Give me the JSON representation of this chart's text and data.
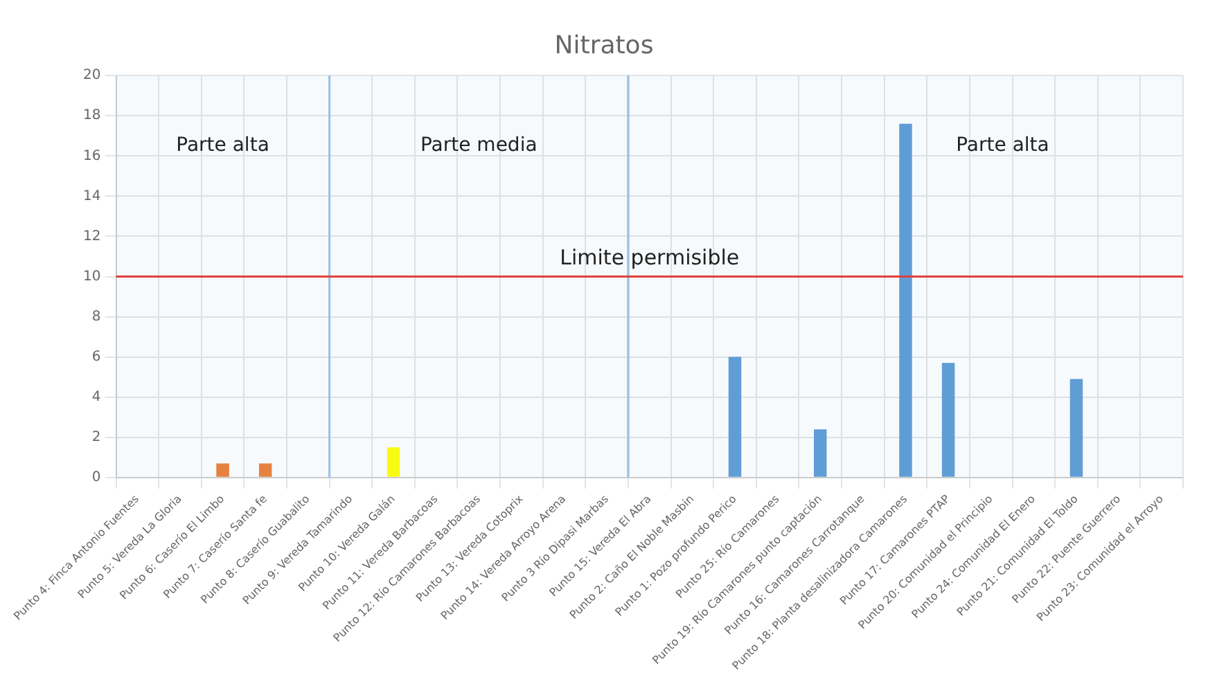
{
  "chart_data": {
    "type": "bar",
    "title": "Nitratos",
    "categories": [
      "Punto 4: Finca Antonio Fuentes",
      "Punto 5: Vereda La Gloria",
      "Punto 6: Caserío El Limbo",
      "Punto 7: Caserío Santa fe",
      "Punto 8: Caserío Guabalito",
      "Punto 9: Vereda Tamarindo",
      "Punto 10: Vereda Galán",
      "Punto 11: Vereda Barbacoas",
      "Punto 12: Río Camarones Barbacoas",
      "Punto 13: Vereda Cotoprix",
      "Punto 14: Vereda Arroyo Arena",
      "Punto 3 Río Dipasi Marbas",
      "Punto 15: Vereda El Abra",
      "Punto 2: Caño El Noble Masbin",
      "Punto 1: Pozo profundo Perico",
      "Punto 25: Río Camarones",
      "Punto 19: Río Camarones punto captación",
      "Punto 16: Camarones Carrotanque",
      "Punto 18: Planta desalinizadora Camarones",
      "Punto 17: Camarones PTAP",
      "Punto 20: Comunidad el Principio",
      "Punto 24: Comunidad El Enero",
      "Punto 21: Comunidad El Toldo",
      "Punto 22: Puente Guerrero",
      "Punto 23: Comunidad el Arroyo"
    ],
    "values": [
      null,
      null,
      0.7,
      0.7,
      null,
      null,
      1.5,
      null,
      null,
      null,
      null,
      null,
      null,
      null,
      6.0,
      null,
      2.4,
      null,
      17.6,
      5.7,
      null,
      null,
      4.9,
      null,
      null
    ],
    "colors": [
      "#5b9bd5",
      "#5b9bd5",
      "#ed7d31",
      "#ed7d31",
      "#5b9bd5",
      "#5b9bd5",
      "#ffff00",
      "#5b9bd5",
      "#5b9bd5",
      "#5b9bd5",
      "#5b9bd5",
      "#5b9bd5",
      "#5b9bd5",
      "#5b9bd5",
      "#5b9bd5",
      "#5b9bd5",
      "#5b9bd5",
      "#5b9bd5",
      "#5b9bd5",
      "#5b9bd5",
      "#5b9bd5",
      "#5b9bd5",
      "#5b9bd5",
      "#5b9bd5",
      "#5b9bd5"
    ],
    "ylim": [
      0,
      20
    ],
    "yticks": [
      0,
      2,
      4,
      6,
      8,
      10,
      12,
      14,
      16,
      18,
      20
    ],
    "grid": true,
    "ref_lines": [
      {
        "axis": "y",
        "value": 10,
        "label": "Limite permisible",
        "color": "#e0403a"
      }
    ],
    "bands": [
      {
        "axis": "x",
        "from": "Punto 4: Finca Antonio Fuentes",
        "to": "Punto 8: Caserío Guabalito",
        "label": "Parte alta",
        "color": "#9dc3e6"
      },
      {
        "axis": "x",
        "from": "Punto 9: Vereda Tamarindo",
        "to": "Punto 3 Río Dipasi Marbas",
        "label": "Parte media",
        "color": "#9dc3e6"
      },
      {
        "axis": "x",
        "from": "Punto 15: Vereda El Abra",
        "to": "Punto 23: Comunidad el Arroyo",
        "label": "Parte alta",
        "color": "#9dc3e6"
      }
    ]
  }
}
